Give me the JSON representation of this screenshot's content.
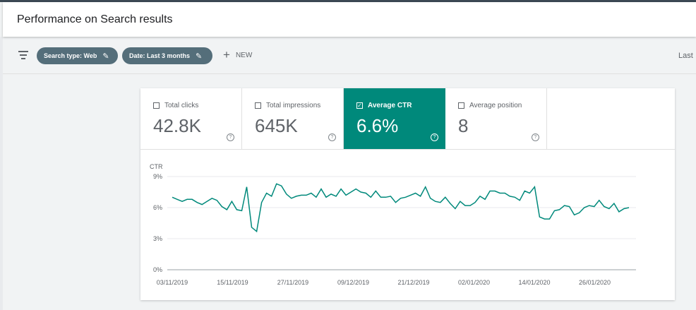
{
  "header": {
    "title": "Performance on Search results"
  },
  "filters": {
    "chips": [
      {
        "label": "Search type: Web"
      },
      {
        "label": "Date: Last 3 months"
      }
    ],
    "new_label": "NEW",
    "right_label": "Last"
  },
  "metrics": [
    {
      "label": "Total clicks",
      "value": "42.8K",
      "checked": false
    },
    {
      "label": "Total impressions",
      "value": "645K",
      "checked": false
    },
    {
      "label": "Average CTR",
      "value": "6.6%",
      "checked": true
    },
    {
      "label": "Average position",
      "value": "8",
      "checked": false
    }
  ],
  "colors": {
    "accent": "#00897b",
    "chip": "#546e7a",
    "line": "#00897b"
  },
  "chart_data": {
    "type": "line",
    "ylabel": "CTR",
    "ylim": [
      0,
      9
    ],
    "yticks": [
      "0%",
      "3%",
      "6%",
      "9%"
    ],
    "xtick_labels": [
      "03/11/2019",
      "15/11/2019",
      "27/11/2019",
      "09/12/2019",
      "21/12/2019",
      "02/01/2020",
      "14/01/2020",
      "26/01/2020"
    ],
    "grid": true,
    "series": [
      {
        "values": [
          7.0,
          6.8,
          6.6,
          6.8,
          6.8,
          6.5,
          6.3,
          6.6,
          6.9,
          6.7,
          6.1,
          5.8,
          6.6,
          5.8,
          5.7,
          8.0,
          4.1,
          3.7,
          6.5,
          7.4,
          7.1,
          8.3,
          8.1,
          7.3,
          6.9,
          7.1,
          7.2,
          7.2,
          7.4,
          7.0,
          7.8,
          7.0,
          7.3,
          7.1,
          7.8,
          7.2,
          7.5,
          7.8,
          7.5,
          7.4,
          7.0,
          7.6,
          7.0,
          7.0,
          7.1,
          6.5,
          6.9,
          7.0,
          7.2,
          7.4,
          7.1,
          8.0,
          6.9,
          6.6,
          6.5,
          7.0,
          6.4,
          5.9,
          6.6,
          6.2,
          6.2,
          6.5,
          7.1,
          6.8,
          7.6,
          7.6,
          7.4,
          7.4,
          7.1,
          7.0,
          6.7,
          7.6,
          7.4,
          8.0,
          5.1,
          4.9,
          4.9,
          5.7,
          5.8,
          6.2,
          6.1,
          5.3,
          5.5,
          6.0,
          6.2,
          6.1,
          6.7,
          6.1,
          5.9,
          6.4,
          5.6,
          5.9,
          6.0
        ]
      }
    ]
  }
}
